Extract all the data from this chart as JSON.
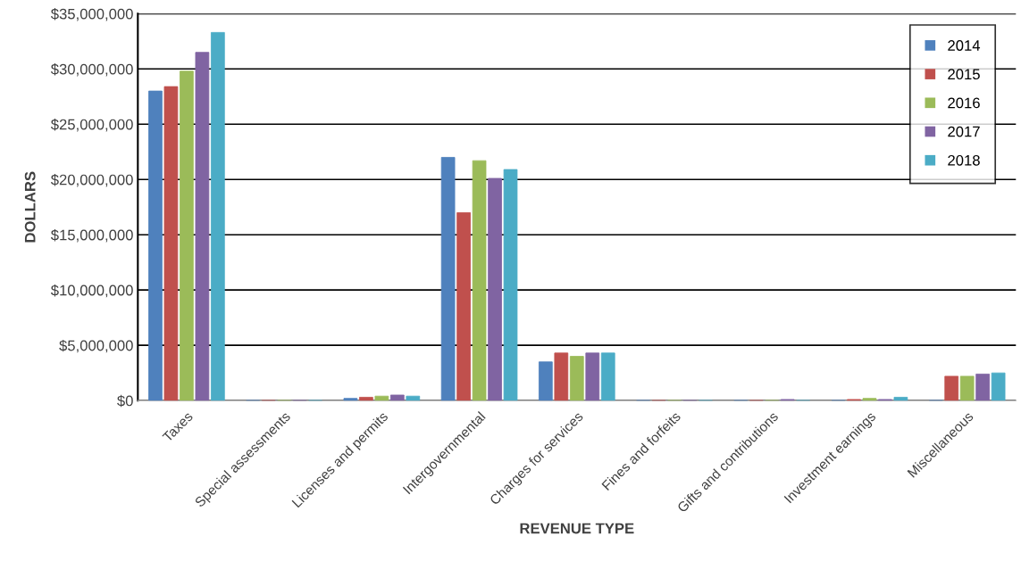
{
  "chart_data": {
    "type": "bar",
    "xlabel": "REVENUE TYPE",
    "ylabel": "DOLLARS",
    "categories": [
      "Taxes",
      "Special assessments",
      "Licenses and permits",
      "Intergovernmental",
      "Charges for services",
      "Fines and forfeits",
      "Gifts and contributions",
      "Investment earnings",
      "Miscellaneous"
    ],
    "series": [
      {
        "name": "2014",
        "color": "#4f81bd",
        "values": [
          28000000,
          0,
          200000,
          22000000,
          3500000,
          0,
          0,
          0,
          0
        ]
      },
      {
        "name": "2015",
        "color": "#c0504d",
        "values": [
          28400000,
          0,
          300000,
          17000000,
          4300000,
          0,
          0,
          100000,
          2200000
        ]
      },
      {
        "name": "2016",
        "color": "#9bbb59",
        "values": [
          29800000,
          0,
          400000,
          21700000,
          4000000,
          0,
          0,
          200000,
          2200000
        ]
      },
      {
        "name": "2017",
        "color": "#8064a2",
        "values": [
          31500000,
          0,
          500000,
          20100000,
          4300000,
          0,
          100000,
          100000,
          2400000
        ]
      },
      {
        "name": "2018",
        "color": "#4bacc6",
        "values": [
          33300000,
          0,
          400000,
          20900000,
          4300000,
          0,
          0,
          300000,
          2500000
        ]
      }
    ],
    "ylim": [
      0,
      35000000
    ],
    "yticks": [
      {
        "value": 0,
        "label": "$0"
      },
      {
        "value": 5000000,
        "label": "$5,000,000"
      },
      {
        "value": 10000000,
        "label": "$10,000,000"
      },
      {
        "value": 15000000,
        "label": "$15,000,000"
      },
      {
        "value": 20000000,
        "label": "$20,000,000"
      },
      {
        "value": 25000000,
        "label": "$25,000,000"
      },
      {
        "value": 30000000,
        "label": "$30,000,000"
      },
      {
        "value": 35000000,
        "label": "$35,000,000"
      }
    ],
    "grid": "y",
    "legend": "top right"
  }
}
